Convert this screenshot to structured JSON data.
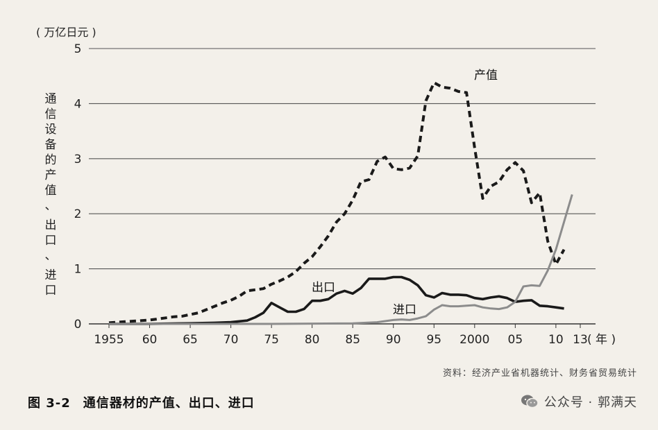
{
  "chart_data": {
    "type": "line",
    "title": "通信器材的产值、出口、进口",
    "figure_number": "图 3-2",
    "unit_label": "( 万亿日元 )",
    "ylabel": "通信设备的产值、出口、进口",
    "xlabel_unit": "( 年 )",
    "ylim": [
      0,
      5
    ],
    "yticks": [
      "0",
      "1",
      "2",
      "3",
      "4",
      "5"
    ],
    "xlim": [
      1955,
      2013
    ],
    "xticks": [
      {
        "year": 1955,
        "label": "1955"
      },
      {
        "year": 1960,
        "label": "60"
      },
      {
        "year": 1965,
        "label": "65"
      },
      {
        "year": 1970,
        "label": "70"
      },
      {
        "year": 1975,
        "label": "75"
      },
      {
        "year": 1980,
        "label": "80"
      },
      {
        "year": 1985,
        "label": "85"
      },
      {
        "year": 1990,
        "label": "90"
      },
      {
        "year": 1995,
        "label": "95"
      },
      {
        "year": 2000,
        "label": "2000"
      },
      {
        "year": 2005,
        "label": "05"
      },
      {
        "year": 2010,
        "label": "10"
      },
      {
        "year": 2013,
        "label": "13"
      }
    ],
    "grid": true,
    "series": [
      {
        "name": "产值",
        "style": "dashed",
        "color": "#1a1a1a",
        "points": [
          [
            1955,
            0.02
          ],
          [
            1956,
            0.03
          ],
          [
            1957,
            0.04
          ],
          [
            1958,
            0.05
          ],
          [
            1959,
            0.06
          ],
          [
            1960,
            0.07
          ],
          [
            1961,
            0.09
          ],
          [
            1962,
            0.11
          ],
          [
            1963,
            0.13
          ],
          [
            1964,
            0.14
          ],
          [
            1965,
            0.17
          ],
          [
            1966,
            0.2
          ],
          [
            1967,
            0.26
          ],
          [
            1968,
            0.32
          ],
          [
            1969,
            0.38
          ],
          [
            1970,
            0.43
          ],
          [
            1971,
            0.5
          ],
          [
            1972,
            0.6
          ],
          [
            1973,
            0.62
          ],
          [
            1974,
            0.64
          ],
          [
            1975,
            0.72
          ],
          [
            1976,
            0.78
          ],
          [
            1977,
            0.85
          ],
          [
            1978,
            0.95
          ],
          [
            1979,
            1.1
          ],
          [
            1980,
            1.22
          ],
          [
            1981,
            1.4
          ],
          [
            1982,
            1.6
          ],
          [
            1983,
            1.85
          ],
          [
            1984,
            2.0
          ],
          [
            1985,
            2.25
          ],
          [
            1986,
            2.58
          ],
          [
            1987,
            2.62
          ],
          [
            1988,
            2.95
          ],
          [
            1989,
            3.03
          ],
          [
            1990,
            2.82
          ],
          [
            1991,
            2.8
          ],
          [
            1992,
            2.83
          ],
          [
            1993,
            3.05
          ],
          [
            1994,
            4.05
          ],
          [
            1995,
            4.38
          ],
          [
            1996,
            4.3
          ],
          [
            1997,
            4.28
          ],
          [
            1998,
            4.22
          ],
          [
            1999,
            4.2
          ],
          [
            2000,
            3.2
          ],
          [
            2001,
            2.28
          ],
          [
            2002,
            2.5
          ],
          [
            2003,
            2.58
          ],
          [
            2004,
            2.8
          ],
          [
            2005,
            2.93
          ],
          [
            2006,
            2.78
          ],
          [
            2007,
            2.2
          ],
          [
            2008,
            2.38
          ],
          [
            2009,
            1.5
          ],
          [
            2010,
            1.08
          ],
          [
            2011,
            1.35
          ]
        ]
      },
      {
        "name": "出口",
        "style": "solid",
        "color": "#1a1a1a",
        "points": [
          [
            1955,
            0.0
          ],
          [
            1960,
            0.0
          ],
          [
            1965,
            0.01
          ],
          [
            1968,
            0.02
          ],
          [
            1970,
            0.03
          ],
          [
            1972,
            0.06
          ],
          [
            1973,
            0.12
          ],
          [
            1974,
            0.2
          ],
          [
            1975,
            0.38
          ],
          [
            1976,
            0.3
          ],
          [
            1977,
            0.22
          ],
          [
            1978,
            0.22
          ],
          [
            1979,
            0.27
          ],
          [
            1980,
            0.42
          ],
          [
            1981,
            0.42
          ],
          [
            1982,
            0.45
          ],
          [
            1983,
            0.55
          ],
          [
            1984,
            0.6
          ],
          [
            1985,
            0.55
          ],
          [
            1986,
            0.65
          ],
          [
            1987,
            0.82
          ],
          [
            1988,
            0.82
          ],
          [
            1989,
            0.82
          ],
          [
            1990,
            0.85
          ],
          [
            1991,
            0.85
          ],
          [
            1992,
            0.8
          ],
          [
            1993,
            0.7
          ],
          [
            1994,
            0.52
          ],
          [
            1995,
            0.48
          ],
          [
            1996,
            0.56
          ],
          [
            1997,
            0.53
          ],
          [
            1998,
            0.53
          ],
          [
            1999,
            0.52
          ],
          [
            2000,
            0.47
          ],
          [
            2001,
            0.45
          ],
          [
            2002,
            0.48
          ],
          [
            2003,
            0.5
          ],
          [
            2004,
            0.47
          ],
          [
            2005,
            0.4
          ],
          [
            2006,
            0.42
          ],
          [
            2007,
            0.43
          ],
          [
            2008,
            0.33
          ],
          [
            2009,
            0.32
          ],
          [
            2010,
            0.3
          ],
          [
            2011,
            0.28
          ]
        ]
      },
      {
        "name": "进口",
        "style": "solid",
        "color": "#8c8c8c",
        "points": [
          [
            1955,
            0.0
          ],
          [
            1975,
            0.0
          ],
          [
            1985,
            0.01
          ],
          [
            1988,
            0.03
          ],
          [
            1990,
            0.07
          ],
          [
            1991,
            0.08
          ],
          [
            1992,
            0.07
          ],
          [
            1993,
            0.1
          ],
          [
            1994,
            0.14
          ],
          [
            1995,
            0.26
          ],
          [
            1996,
            0.34
          ],
          [
            1997,
            0.32
          ],
          [
            1998,
            0.32
          ],
          [
            1999,
            0.33
          ],
          [
            2000,
            0.34
          ],
          [
            2001,
            0.3
          ],
          [
            2002,
            0.28
          ],
          [
            2003,
            0.27
          ],
          [
            2004,
            0.3
          ],
          [
            2005,
            0.4
          ],
          [
            2006,
            0.68
          ],
          [
            2007,
            0.7
          ],
          [
            2008,
            0.69
          ],
          [
            2009,
            0.97
          ],
          [
            2010,
            1.35
          ],
          [
            2011,
            1.85
          ],
          [
            2012,
            2.35
          ]
        ]
      }
    ],
    "source_note": "资料：经济产业省机器统计、财务省贸易统计"
  },
  "watermark": {
    "icon": "wechat-icon",
    "text": "公众号 · 郭满天"
  }
}
